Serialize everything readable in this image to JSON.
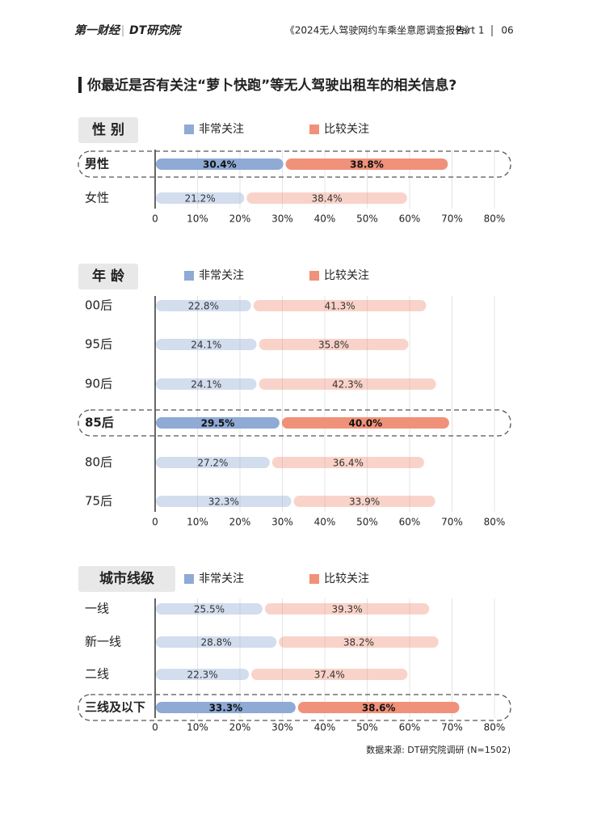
{
  "header": {
    "logo": "第一财经",
    "logo2": "DT研究院",
    "report": "《2024无人驾驶网约车乘坐意愿调查报告》",
    "part": "Part 1",
    "page": "06"
  },
  "question": "你最近是否有关注“萝卜快跑”等无人驾驶出租车的相关信息?",
  "source": "数据来源: DT研究院调研 (N=1502)",
  "chart_data": [
    {
      "type": "bar",
      "title": "性 别",
      "categories": [
        "男性",
        "女性"
      ],
      "highlight": [
        0
      ],
      "series": [
        {
          "name": "非常关注",
          "color": "#8eaad5",
          "values": [
            30.4,
            21.2
          ],
          "value_labels": [
            "30.4%",
            "21.2%"
          ]
        },
        {
          "name": "比较关注",
          "color": "#f09179",
          "values": [
            38.8,
            38.4
          ],
          "value_labels": [
            "38.8%",
            "38.4%"
          ]
        }
      ],
      "xlim": [
        0,
        80
      ],
      "xticks": [
        0,
        {
          "value": 10,
          "label": "10%"
        },
        {
          "value": 20,
          "label": "20%"
        },
        {
          "value": 30,
          "label": "30%"
        },
        {
          "value": 40,
          "label": "40%"
        },
        {
          "value": 50,
          "label": "50%"
        },
        {
          "value": 60,
          "label": "60%"
        },
        {
          "value": 70,
          "label": "70%"
        },
        {
          "value": 80,
          "label": "80%"
        }
      ],
      "grid": true
    },
    {
      "type": "bar",
      "title": "年 龄",
      "categories": [
        "00后",
        "95后",
        "90后",
        "85后",
        "80后",
        "75后"
      ],
      "highlight": [
        3
      ],
      "series": [
        {
          "name": "非常关注",
          "color": "#8eaad5",
          "values": [
            22.8,
            24.1,
            24.1,
            29.5,
            27.2,
            32.3
          ],
          "value_labels": [
            "22.8%",
            "24.1%",
            "24.1%",
            "29.5%",
            "27.2%",
            "32.3%"
          ]
        },
        {
          "name": "比较关注",
          "color": "#f09179",
          "values": [
            41.3,
            35.8,
            42.3,
            40.0,
            36.4,
            33.9
          ],
          "value_labels": [
            "41.3%",
            "35.8%",
            "42.3%",
            "40.0%",
            "36.4%",
            "33.9%"
          ]
        }
      ],
      "xlim": [
        0,
        80
      ],
      "xticks": [
        0,
        {
          "value": 10,
          "label": "10%"
        },
        {
          "value": 20,
          "label": "20%"
        },
        {
          "value": 30,
          "label": "30%"
        },
        {
          "value": 40,
          "label": "40%"
        },
        {
          "value": 50,
          "label": "50%"
        },
        {
          "value": 60,
          "label": "60%"
        },
        {
          "value": 70,
          "label": "70%"
        },
        {
          "value": 80,
          "label": "80%"
        }
      ],
      "grid": true
    },
    {
      "type": "bar",
      "title": "城市线级",
      "categories": [
        "一线",
        "新一线",
        "二线",
        "三线及以下"
      ],
      "highlight": [
        3
      ],
      "series": [
        {
          "name": "非常关注",
          "color": "#8eaad5",
          "values": [
            25.5,
            28.8,
            22.3,
            33.3
          ],
          "value_labels": [
            "25.5%",
            "28.8%",
            "22.3%",
            "33.3%"
          ]
        },
        {
          "name": "比较关注",
          "color": "#f09179",
          "values": [
            39.3,
            38.2,
            37.4,
            38.6
          ],
          "value_labels": [
            "39.3%",
            "38.2%",
            "37.4%",
            "38.6%"
          ]
        }
      ],
      "xlim": [
        0,
        80
      ],
      "xticks": [
        0,
        {
          "value": 10,
          "label": "10%"
        },
        {
          "value": 20,
          "label": "20%"
        },
        {
          "value": 30,
          "label": "30%"
        },
        {
          "value": 40,
          "label": "40%"
        },
        {
          "value": 50,
          "label": "50%"
        },
        {
          "value": 60,
          "label": "60%"
        },
        {
          "value": 70,
          "label": "70%"
        },
        {
          "value": 80,
          "label": "80%"
        }
      ],
      "grid": true
    }
  ]
}
